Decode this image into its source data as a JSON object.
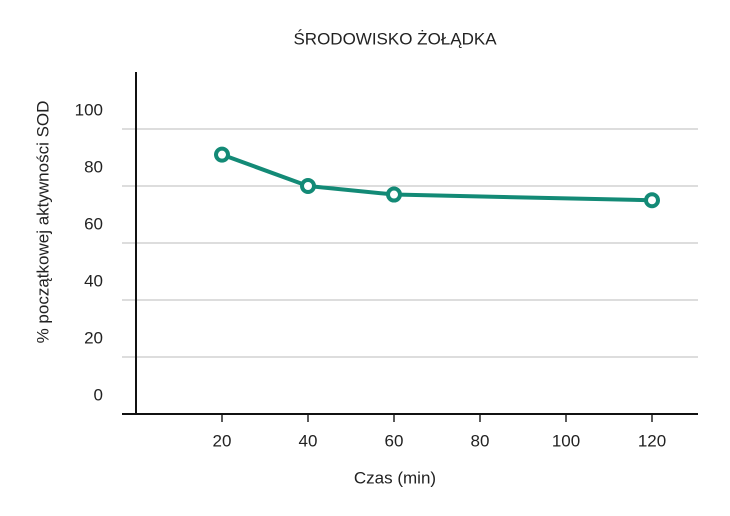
{
  "chart_data": {
    "type": "line",
    "title": "ŚRODOWISKO ŻOŁĄDKA",
    "x_label": "Czas (min)",
    "y_label": "% początkowej aktywności SOD",
    "x": [
      20,
      40,
      60,
      120
    ],
    "series": [
      {
        "color": "#138a76",
        "values": [
          91,
          80,
          77,
          75
        ]
      }
    ],
    "xlim": [
      0,
      130
    ],
    "xticks": [
      20,
      40,
      60,
      80,
      100,
      120
    ],
    "ylim": [
      0,
      120
    ],
    "yticks": [
      0,
      20,
      40,
      60,
      80,
      100
    ],
    "grid": true
  }
}
